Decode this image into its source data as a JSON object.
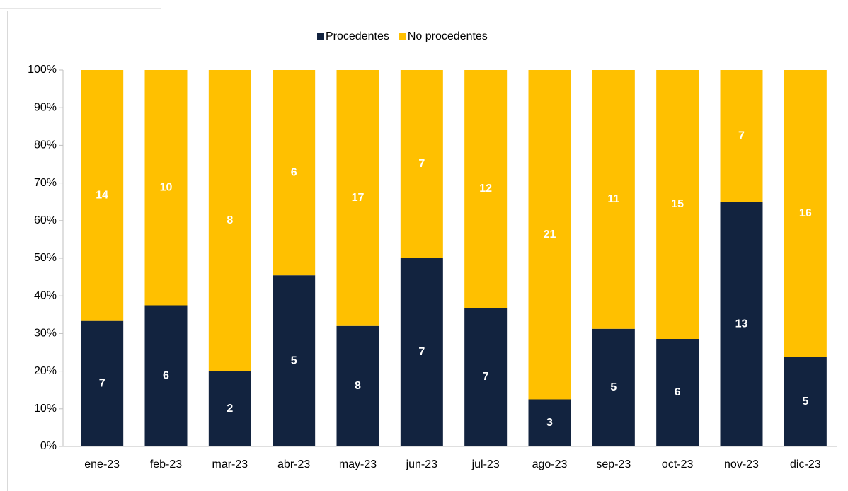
{
  "chart_data": {
    "type": "bar",
    "stacking": "percent",
    "categories": [
      "ene-23",
      "feb-23",
      "mar-23",
      "abr-23",
      "may-23",
      "jun-23",
      "jul-23",
      "ago-23",
      "sep-23",
      "oct-23",
      "nov-23",
      "dic-23"
    ],
    "series": [
      {
        "name": "Procedentes",
        "color": "#12233f",
        "values": [
          7,
          6,
          2,
          5,
          8,
          7,
          7,
          3,
          5,
          6,
          13,
          5
        ]
      },
      {
        "name": "No procedentes",
        "color": "#ffc000",
        "values": [
          14,
          10,
          8,
          6,
          17,
          7,
          12,
          21,
          11,
          15,
          7,
          16
        ]
      }
    ],
    "ylim": [
      0,
      100
    ],
    "yticks": [
      {
        "value": 0,
        "label": "0%"
      },
      {
        "value": 10,
        "label": "10%"
      },
      {
        "value": 20,
        "label": "20%"
      },
      {
        "value": 30,
        "label": "30%"
      },
      {
        "value": 40,
        "label": "40%"
      },
      {
        "value": 50,
        "label": "50%"
      },
      {
        "value": 60,
        "label": "60%"
      },
      {
        "value": 70,
        "label": "70%"
      },
      {
        "value": 80,
        "label": "80%"
      },
      {
        "value": 90,
        "label": "90%"
      },
      {
        "value": 100,
        "label": "100%"
      }
    ],
    "grid": false,
    "legend": "top"
  }
}
